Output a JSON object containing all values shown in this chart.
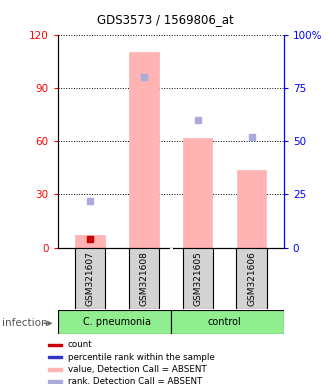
{
  "title": "GDS3573 / 1569806_at",
  "samples": [
    "GSM321607",
    "GSM321608",
    "GSM321605",
    "GSM321606"
  ],
  "ylim_left": [
    0,
    120
  ],
  "ylim_right": [
    0,
    100
  ],
  "yticks_left": [
    0,
    30,
    60,
    90,
    120
  ],
  "yticks_right": [
    0,
    25,
    50,
    75,
    100
  ],
  "yticklabels_right": [
    "0",
    "25",
    "50",
    "75",
    "100%"
  ],
  "bar_values": [
    7,
    110,
    62,
    44
  ],
  "rank_dots_pct": [
    22,
    80,
    60,
    52
  ],
  "bar_color": "#ffb3b3",
  "rank_dot_color_absent": "#aaaadd",
  "count_dot_color": "#cc0000",
  "count_values": [
    5,
    null,
    null,
    null
  ],
  "legend_items": [
    {
      "color": "#cc0000",
      "label": "count"
    },
    {
      "color": "#3333cc",
      "label": "percentile rank within the sample"
    },
    {
      "color": "#ffb3b3",
      "label": "value, Detection Call = ABSENT"
    },
    {
      "color": "#aaaadd",
      "label": "rank, Detection Call = ABSENT"
    }
  ],
  "infection_label": "infection",
  "cpneu_label": "C. pneumonia",
  "control_label": "control",
  "cpneu_color": "#90ee90",
  "control_color": "#90ee90"
}
